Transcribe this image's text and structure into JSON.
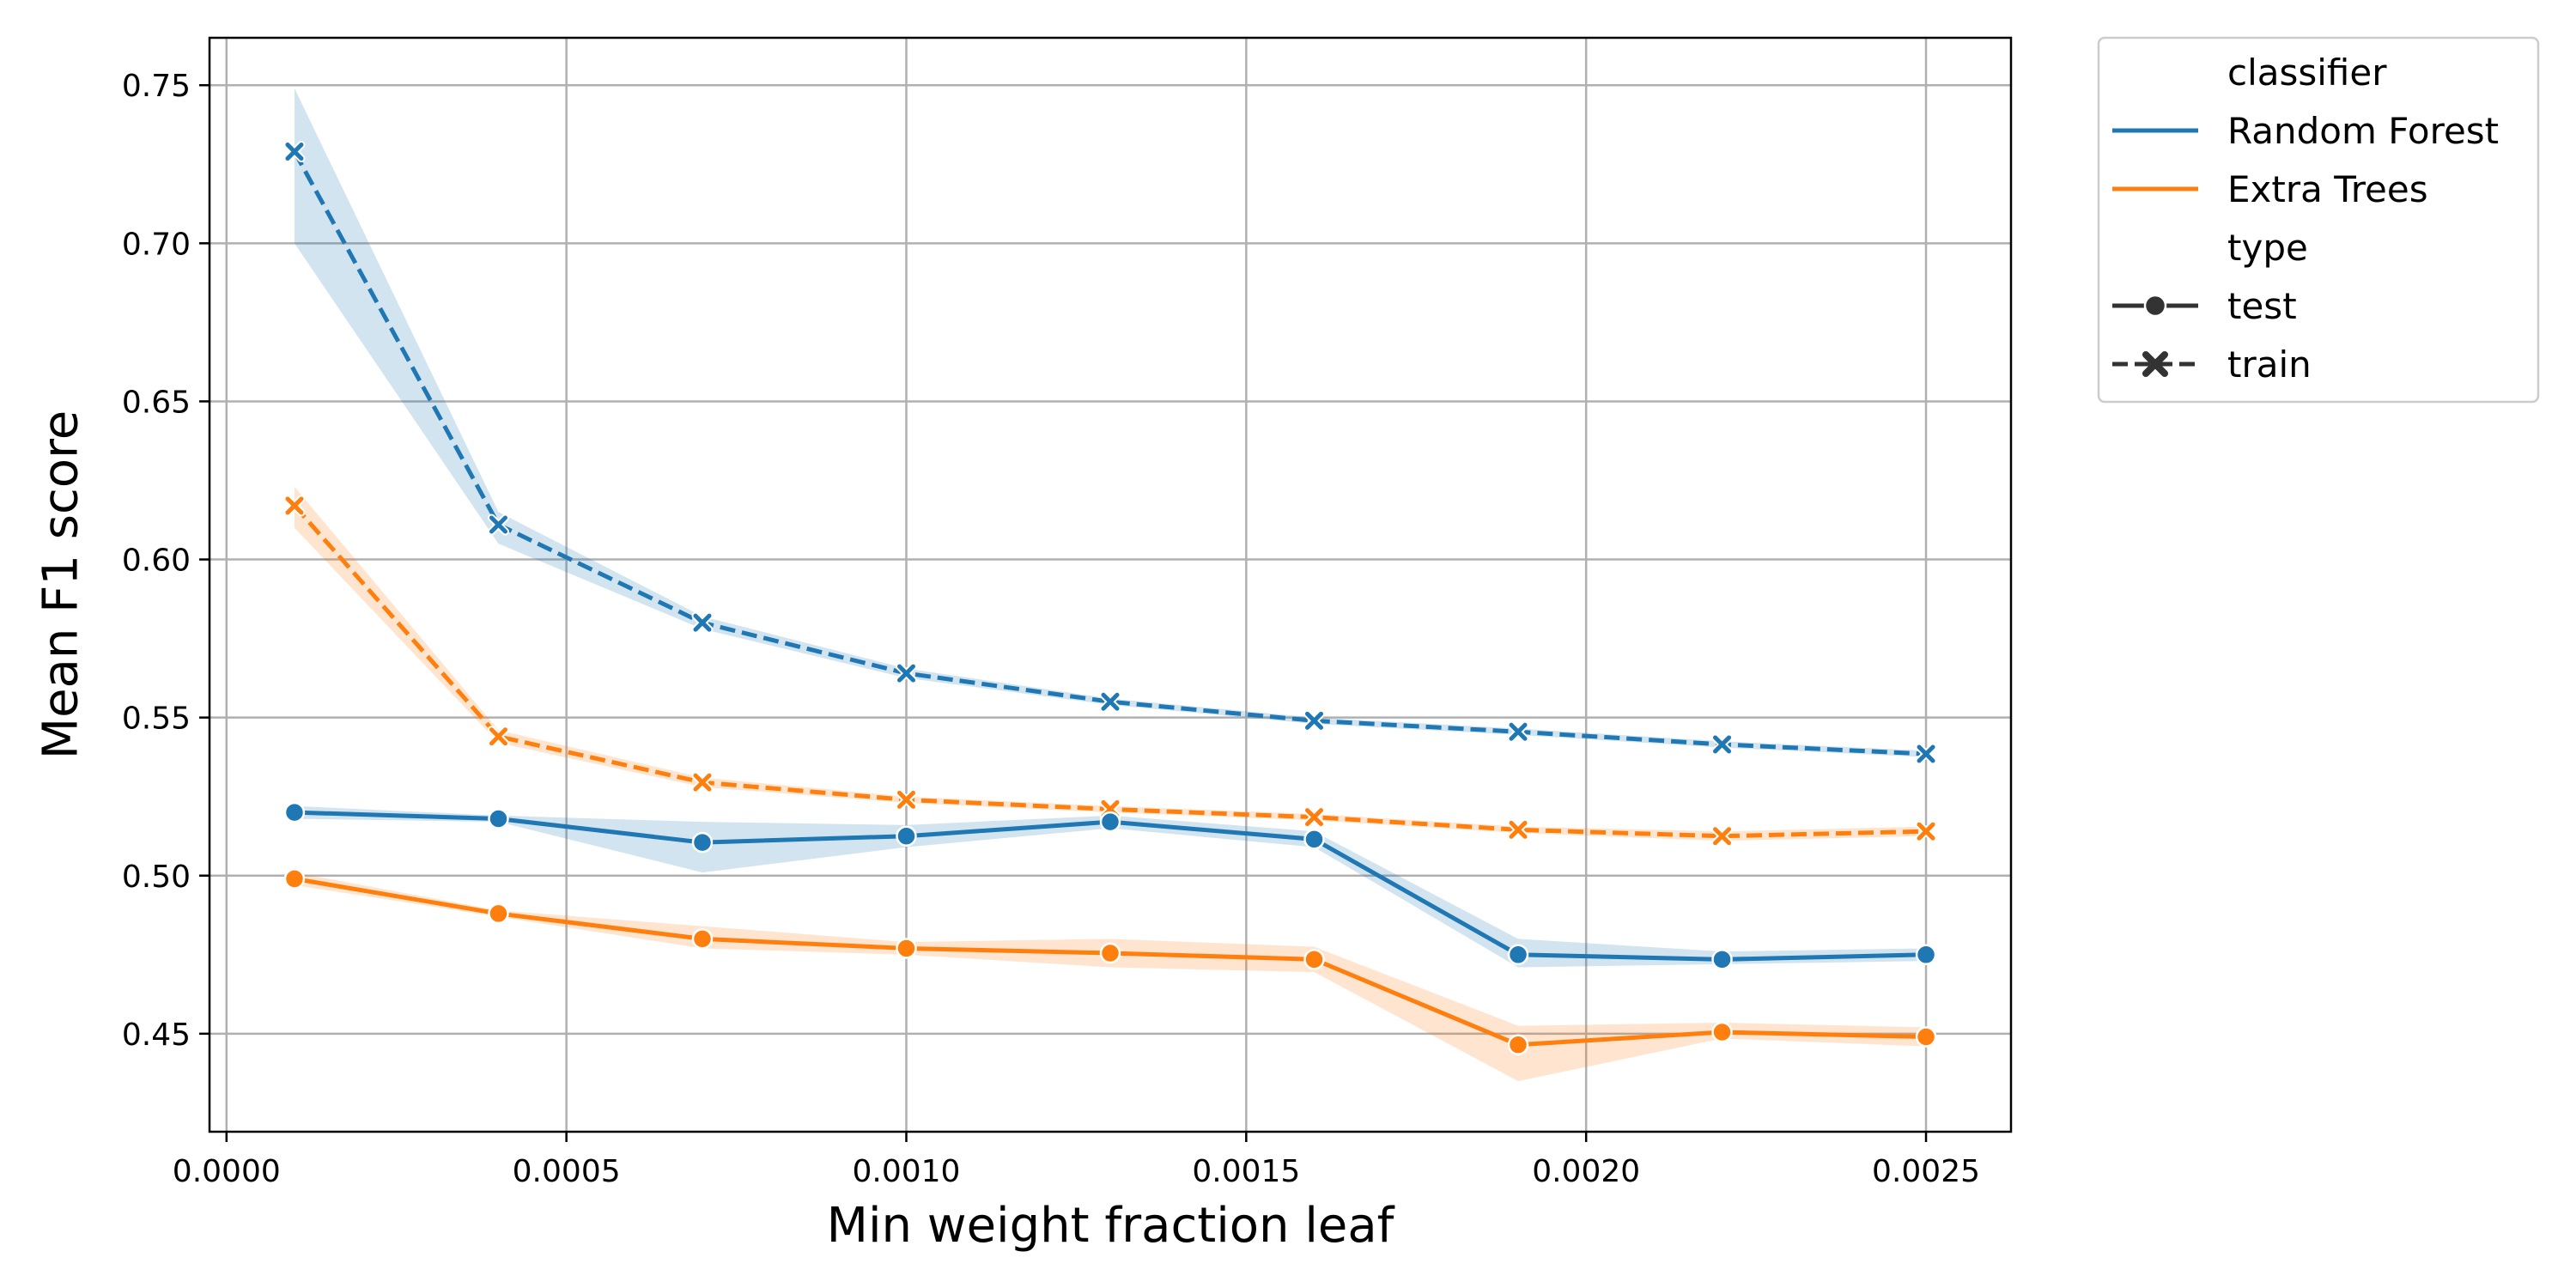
{
  "chart_data": {
    "type": "line",
    "xlabel": "Min weight fraction leaf",
    "ylabel": "Mean F1 score",
    "xlim": [
      -2.5e-05,
      0.002625
    ],
    "ylim": [
      0.419,
      0.765
    ],
    "xticks": [
      0.0,
      0.0005,
      0.001,
      0.0015,
      0.002,
      0.0025
    ],
    "xtick_labels": [
      "0.0000",
      "0.0005",
      "0.0010",
      "0.0015",
      "0.0020",
      "0.0025"
    ],
    "yticks": [
      0.45,
      0.5,
      0.55,
      0.6,
      0.65,
      0.7,
      0.75
    ],
    "ytick_labels": [
      "0.45",
      "0.50",
      "0.55",
      "0.60",
      "0.65",
      "0.70",
      "0.75"
    ],
    "grid": true,
    "legend_position": "outside-top-right",
    "x": [
      0.0001,
      0.0004,
      0.0007,
      0.001,
      0.0013,
      0.0016,
      0.0019,
      0.0022,
      0.0025
    ],
    "series": [
      {
        "name": "Random Forest",
        "type": "train",
        "classifier_key": "rf",
        "values": [
          0.729,
          0.611,
          0.58,
          0.564,
          0.555,
          0.549,
          0.5455,
          0.5415,
          0.5385
        ],
        "lower": [
          0.7,
          0.605,
          0.578,
          0.5625,
          0.554,
          0.548,
          0.5445,
          0.5405,
          0.5375
        ],
        "upper": [
          0.749,
          0.615,
          0.582,
          0.5655,
          0.556,
          0.55,
          0.5465,
          0.5425,
          0.5395
        ]
      },
      {
        "name": "Extra Trees",
        "type": "train",
        "classifier_key": "et",
        "values": [
          0.617,
          0.544,
          0.5295,
          0.524,
          0.521,
          0.5185,
          0.5145,
          0.5125,
          0.514
        ],
        "lower": [
          0.61,
          0.542,
          0.528,
          0.523,
          0.52,
          0.5175,
          0.5135,
          0.511,
          0.5125
        ],
        "upper": [
          0.623,
          0.546,
          0.531,
          0.525,
          0.522,
          0.5195,
          0.5155,
          0.514,
          0.5155
        ]
      },
      {
        "name": "Random Forest",
        "type": "test",
        "classifier_key": "rf",
        "values": [
          0.52,
          0.518,
          0.5105,
          0.5125,
          0.517,
          0.5115,
          0.475,
          0.4735,
          0.475
        ],
        "lower": [
          0.518,
          0.517,
          0.501,
          0.509,
          0.515,
          0.509,
          0.471,
          0.472,
          0.473
        ],
        "upper": [
          0.522,
          0.519,
          0.517,
          0.516,
          0.519,
          0.514,
          0.48,
          0.476,
          0.477
        ]
      },
      {
        "name": "Extra Trees",
        "type": "test",
        "classifier_key": "et",
        "values": [
          0.499,
          0.488,
          0.48,
          0.477,
          0.4755,
          0.4735,
          0.4465,
          0.4505,
          0.449
        ],
        "lower": [
          0.497,
          0.487,
          0.477,
          0.475,
          0.471,
          0.4695,
          0.435,
          0.4485,
          0.446
        ],
        "upper": [
          0.501,
          0.489,
          0.484,
          0.479,
          0.48,
          0.4775,
          0.4525,
          0.4535,
          0.452
        ]
      }
    ]
  },
  "colors": {
    "rf": "#1f77b4",
    "et": "#ff7f0e",
    "rf_band": "#1f77b4",
    "et_band": "#ff7f0e",
    "grid": "#b0b0b0",
    "legend_marker": "#333333"
  },
  "legend": {
    "hue_title": "classifier",
    "hue_items": [
      {
        "label": "Random Forest",
        "color": "#1f77b4"
      },
      {
        "label": "Extra Trees",
        "color": "#ff7f0e"
      }
    ],
    "style_title": "type",
    "style_items": [
      {
        "label": "test",
        "marker": "circle",
        "dash": "solid"
      },
      {
        "label": "train",
        "marker": "x",
        "dash": "dashed"
      }
    ]
  }
}
